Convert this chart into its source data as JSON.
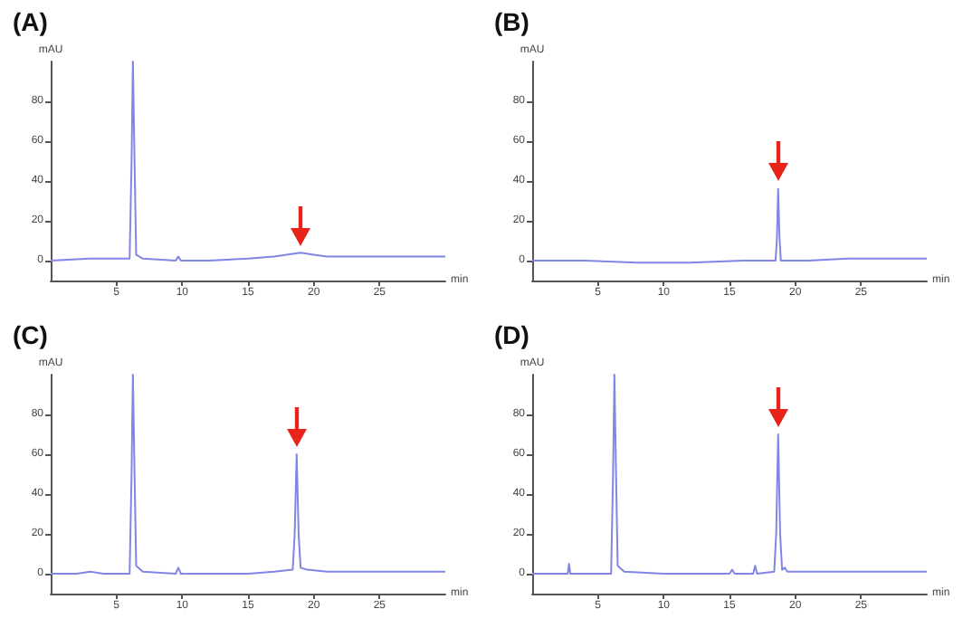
{
  "chart_data": [
    {
      "type": "line",
      "title": "(A)",
      "xlabel": "min",
      "ylabel": "mAU",
      "color": "#7f86e6",
      "xlim": [
        0,
        30
      ],
      "xticks": [
        5,
        10,
        15,
        20,
        25
      ],
      "ylim": [
        -10,
        100
      ],
      "yticks": [
        0,
        20,
        40,
        60,
        80
      ],
      "x": [
        0,
        3,
        6.0,
        6.15,
        6.25,
        6.35,
        6.5,
        7,
        9.5,
        9.7,
        9.9,
        12,
        15,
        17,
        19,
        20,
        21,
        25,
        30
      ],
      "values": [
        0,
        1,
        1,
        50,
        100,
        60,
        3,
        1,
        0,
        2,
        0,
        0,
        1,
        2,
        4,
        3,
        2,
        2,
        2
      ]
    },
    {
      "type": "line",
      "title": "(B)",
      "xlabel": "min",
      "ylabel": "mAU",
      "color": "#7f86e6",
      "xlim": [
        0,
        30
      ],
      "xticks": [
        5,
        10,
        15,
        20,
        25
      ],
      "ylim": [
        -10,
        100
      ],
      "yticks": [
        0,
        20,
        40,
        60,
        80
      ],
      "x": [
        0,
        4,
        8,
        12,
        16,
        18.5,
        18.6,
        18.7,
        18.8,
        18.9,
        21,
        24,
        27,
        30
      ],
      "values": [
        0,
        0,
        -1,
        -1,
        0,
        0,
        10,
        36,
        12,
        0,
        0,
        1,
        1,
        1
      ]
    },
    {
      "type": "line",
      "title": "(C)",
      "xlabel": "min",
      "ylabel": "mAU",
      "color": "#7f86e6",
      "xlim": [
        0,
        30
      ],
      "xticks": [
        5,
        10,
        15,
        20,
        25
      ],
      "ylim": [
        -10,
        100
      ],
      "yticks": [
        0,
        20,
        40,
        60,
        80
      ],
      "x": [
        0,
        2,
        3,
        4,
        6.0,
        6.15,
        6.25,
        6.35,
        6.5,
        7,
        9.5,
        9.7,
        9.9,
        12,
        15,
        17,
        18.4,
        18.55,
        18.7,
        18.85,
        19.0,
        19.5,
        21,
        25,
        30
      ],
      "values": [
        0,
        0,
        1,
        0,
        0,
        50,
        100,
        60,
        4,
        1,
        0,
        3,
        0,
        0,
        0,
        1,
        2,
        20,
        60,
        20,
        3,
        2,
        1,
        1,
        1
      ]
    },
    {
      "type": "line",
      "title": "(D)",
      "xlabel": "min",
      "ylabel": "mAU",
      "color": "#7f86e6",
      "xlim": [
        0,
        30
      ],
      "xticks": [
        5,
        10,
        15,
        20,
        25
      ],
      "ylim": [
        -10,
        100
      ],
      "yticks": [
        0,
        20,
        40,
        60,
        80
      ],
      "x": [
        0,
        2.7,
        2.8,
        2.9,
        6.0,
        6.15,
        6.25,
        6.35,
        6.5,
        7,
        10,
        15,
        15.2,
        15.4,
        16.8,
        16.95,
        17.1,
        18.4,
        18.55,
        18.7,
        18.85,
        19.0,
        19.2,
        19.4,
        25,
        30
      ],
      "values": [
        0,
        0,
        5,
        0,
        0,
        50,
        100,
        60,
        4,
        1,
        0,
        0,
        2,
        0,
        0,
        4,
        0,
        1,
        20,
        70,
        20,
        2,
        3,
        1,
        1,
        1
      ]
    }
  ]
}
